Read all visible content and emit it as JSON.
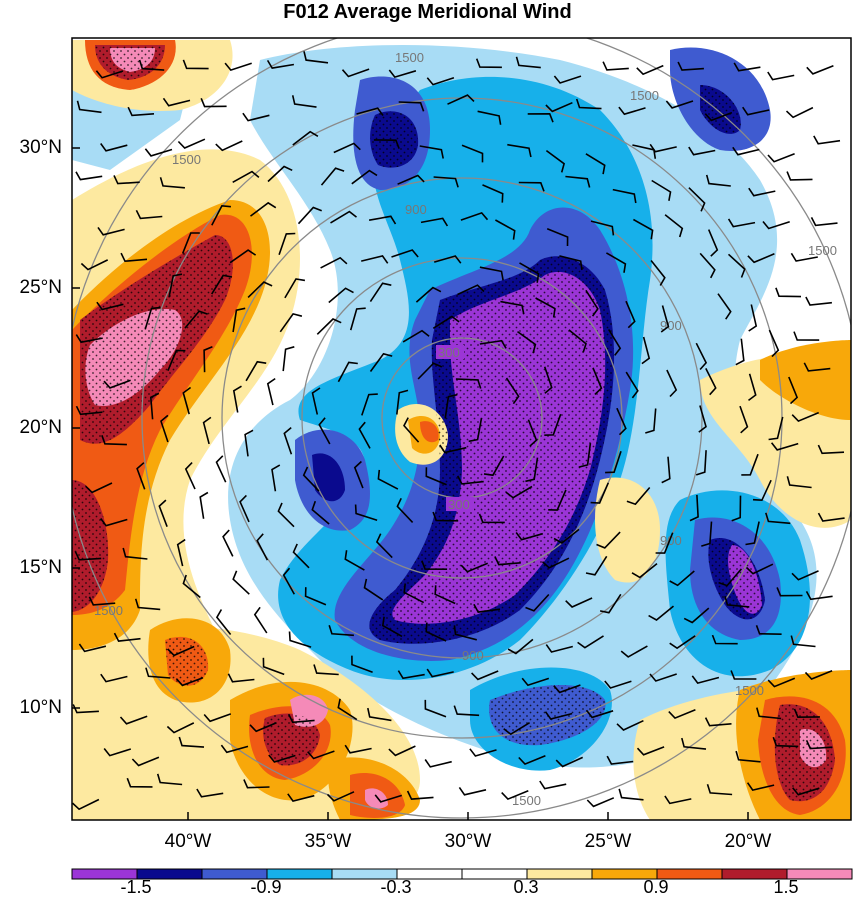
{
  "title": "F012 Average Meridional Wind",
  "lat_labels": [
    "30°N",
    "25°N",
    "20°N",
    "15°N",
    "10°N"
  ],
  "lon_labels": [
    "40°W",
    "35°W",
    "30°W",
    "25°W",
    "20°W"
  ],
  "radius_labels": [
    "300",
    "300",
    "900",
    "900",
    "900",
    "900",
    "1500",
    "1500",
    "1500",
    "1500",
    "1500",
    "1500",
    "1500"
  ],
  "colorbar": {
    "colors": [
      "#9b35d6",
      "#0a0a8e",
      "#3f5bd0",
      "#17b0ea",
      "#a8dcf5",
      "#ffffff",
      "#ffffff",
      "#fde9a0",
      "#f8a80a",
      "#f05a14",
      "#b01c2c",
      "#f58ab8"
    ],
    "labels": [
      "-1.5",
      "-0.9",
      "-0.3",
      "0.3",
      "0.9",
      "1.5"
    ]
  },
  "chart_data": {
    "type": "heatmap",
    "title": "F012 Average Meridional Wind",
    "variable": "meridional wind",
    "contour_levels": [
      -1.5,
      -1.2,
      -0.9,
      -0.6,
      -0.3,
      0,
      0.3,
      0.6,
      0.9,
      1.2,
      1.5
    ],
    "colorbar_labels": [
      -1.5,
      -0.9,
      -0.3,
      0.3,
      0.9,
      1.5
    ],
    "lat_range_deg_N": [
      6,
      34
    ],
    "lon_range_deg_W": [
      44,
      16
    ],
    "range_rings_labels": [
      300,
      900,
      1500
    ],
    "overlays": [
      "wind barbs",
      "stippling",
      "range rings"
    ]
  }
}
